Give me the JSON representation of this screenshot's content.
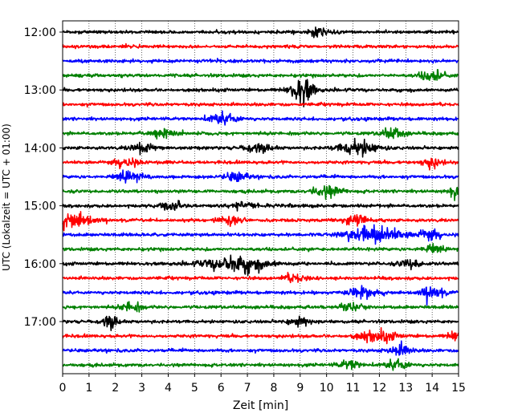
{
  "chart_data": {
    "type": "line",
    "title": "",
    "xlabel": "Zeit  [min]",
    "ylabel": "UTC (Lokalzeit = UTC + 01:00)",
    "xlim": [
      0,
      15
    ],
    "x_ticks": [
      0,
      1,
      2,
      3,
      4,
      5,
      6,
      7,
      8,
      9,
      10,
      11,
      12,
      13,
      14,
      15
    ],
    "y_ticks": [
      "12:00",
      "13:00",
      "14:00",
      "15:00",
      "16:00",
      "17:00"
    ],
    "trace_start": "12:00",
    "trace_end": "17:45",
    "trace_interval_min": 15,
    "color_cycle": [
      "#000000",
      "#ff0000",
      "#0000ff",
      "#008000"
    ],
    "grid": {
      "vertical_dotted": true,
      "horizontal": false
    },
    "legend": "none",
    "bursts": [
      {
        "trace": "12:00",
        "t": 9.7,
        "amp": 0.9,
        "width": 0.3
      },
      {
        "trace": "12:45",
        "t": 14.0,
        "amp": 1.4,
        "width": 0.3
      },
      {
        "trace": "13:00",
        "t": 9.0,
        "amp": 2.0,
        "width": 0.3
      },
      {
        "trace": "13:00",
        "t": 9.2,
        "amp": 1.5,
        "width": 0.25
      },
      {
        "trace": "13:30",
        "t": 6.1,
        "amp": 1.3,
        "width": 0.4
      },
      {
        "trace": "13:45",
        "t": 3.8,
        "amp": 1.2,
        "width": 0.3
      },
      {
        "trace": "13:45",
        "t": 12.5,
        "amp": 1.3,
        "width": 0.3
      },
      {
        "trace": "14:00",
        "t": 3.0,
        "amp": 1.2,
        "width": 0.3
      },
      {
        "trace": "14:00",
        "t": 7.4,
        "amp": 1.1,
        "width": 0.35
      },
      {
        "trace": "14:00",
        "t": 11.2,
        "amp": 1.8,
        "width": 0.5
      },
      {
        "trace": "14:15",
        "t": 2.4,
        "amp": 1.1,
        "width": 0.3
      },
      {
        "trace": "14:15",
        "t": 14.0,
        "amp": 1.2,
        "width": 0.25
      },
      {
        "trace": "14:30",
        "t": 2.5,
        "amp": 1.3,
        "width": 0.3
      },
      {
        "trace": "14:30",
        "t": 6.6,
        "amp": 1.1,
        "width": 0.3
      },
      {
        "trace": "14:45",
        "t": 10.0,
        "amp": 1.3,
        "width": 0.4
      },
      {
        "trace": "14:45",
        "t": 14.9,
        "amp": 1.5,
        "width": 0.2
      },
      {
        "trace": "15:00",
        "t": 4.1,
        "amp": 1.4,
        "width": 0.3
      },
      {
        "trace": "15:00",
        "t": 6.9,
        "amp": 1.0,
        "width": 0.3
      },
      {
        "trace": "15:15",
        "t": 0.4,
        "amp": 1.9,
        "width": 0.5
      },
      {
        "trace": "15:15",
        "t": 6.4,
        "amp": 1.0,
        "width": 0.3
      },
      {
        "trace": "15:15",
        "t": 11.1,
        "amp": 1.1,
        "width": 0.3
      },
      {
        "trace": "15:30",
        "t": 11.8,
        "amp": 2.2,
        "width": 0.7
      },
      {
        "trace": "15:30",
        "t": 13.9,
        "amp": 1.2,
        "width": 0.3
      },
      {
        "trace": "15:45",
        "t": 14.0,
        "amp": 0.9,
        "width": 0.3
      },
      {
        "trace": "16:00",
        "t": 6.6,
        "amp": 2.0,
        "width": 0.8
      },
      {
        "trace": "16:00",
        "t": 13.2,
        "amp": 1.1,
        "width": 0.3
      },
      {
        "trace": "16:15",
        "t": 8.8,
        "amp": 0.9,
        "width": 0.3
      },
      {
        "trace": "16:30",
        "t": 11.4,
        "amp": 1.3,
        "width": 0.4
      },
      {
        "trace": "16:30",
        "t": 14.0,
        "amp": 1.5,
        "width": 0.3
      },
      {
        "trace": "16:45",
        "t": 2.6,
        "amp": 1.2,
        "width": 0.25
      },
      {
        "trace": "16:45",
        "t": 10.9,
        "amp": 1.0,
        "width": 0.3
      },
      {
        "trace": "17:00",
        "t": 1.8,
        "amp": 1.8,
        "width": 0.2
      },
      {
        "trace": "17:00",
        "t": 9.0,
        "amp": 1.1,
        "width": 0.3
      },
      {
        "trace": "17:15",
        "t": 11.9,
        "amp": 1.3,
        "width": 0.5
      },
      {
        "trace": "17:15",
        "t": 14.9,
        "amp": 1.2,
        "width": 0.2
      },
      {
        "trace": "17:30",
        "t": 12.8,
        "amp": 1.3,
        "width": 0.3
      },
      {
        "trace": "17:45",
        "t": 10.9,
        "amp": 1.0,
        "width": 0.3
      },
      {
        "trace": "17:45",
        "t": 12.7,
        "amp": 1.3,
        "width": 0.3
      }
    ]
  }
}
